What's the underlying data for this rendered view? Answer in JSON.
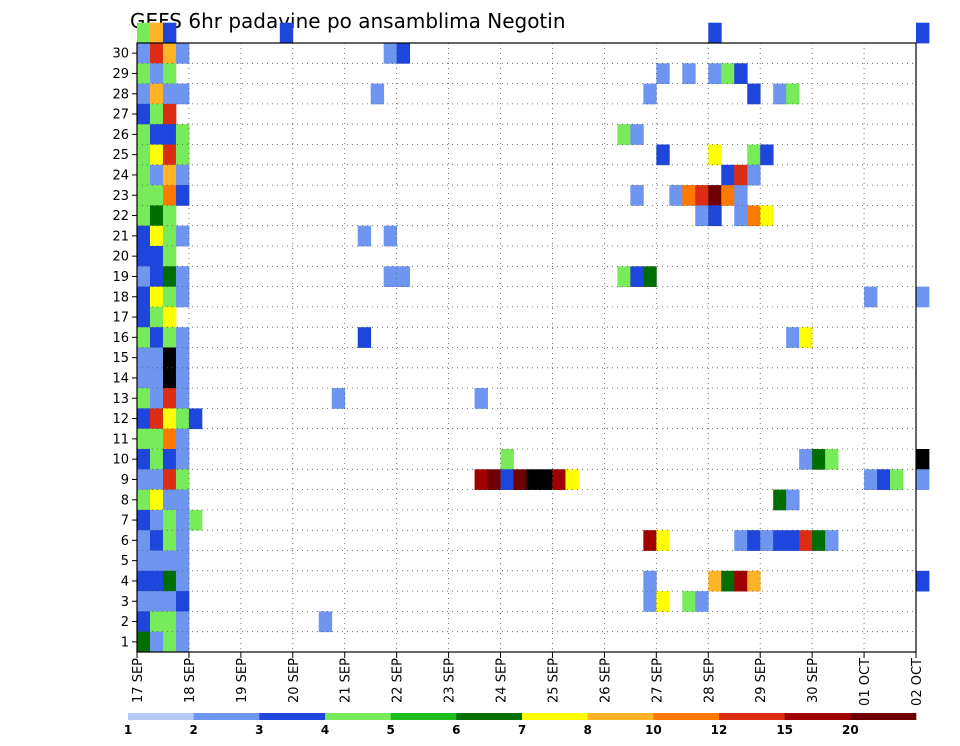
{
  "chart_data": {
    "type": "heatmap",
    "title": "GEFS 6hr padavine po ansamblima Negotin",
    "xlabel": "",
    "ylabel": "",
    "x_tick_labels": [
      "17 SEP",
      "18 SEP",
      "19 SEP",
      "20 SEP",
      "21 SEP",
      "22 SEP",
      "23 SEP",
      "24 SEP",
      "25 SEP",
      "26 SEP",
      "27 SEP",
      "28 SEP",
      "29 SEP",
      "30 SEP",
      "01 OCT",
      "02 OCT"
    ],
    "y_tick_labels": [
      "1",
      "2",
      "3",
      "4",
      "5",
      "6",
      "7",
      "8",
      "9",
      "10",
      "11",
      "12",
      "13",
      "14",
      "15",
      "16",
      "17",
      "18",
      "19",
      "20",
      "21",
      "22",
      "23",
      "24",
      "25",
      "26",
      "27",
      "28",
      "29",
      "30"
    ],
    "time_steps_per_day": 4,
    "grid": "dotted",
    "colorbar": {
      "position": "bottom",
      "labels": [
        "1",
        "2",
        "3",
        "4",
        "5",
        "6",
        "7",
        "8",
        "10",
        "12",
        "15",
        "20"
      ],
      "colors": [
        "#b4c8f5",
        "#6e96f0",
        "#1e46dc",
        "#78eb5a",
        "#1ebe1e",
        "#006e00",
        "#ffff00",
        "#ffb428",
        "#ff7800",
        "#dc2d14",
        "#a00000",
        "#6e0000"
      ]
    },
    "cells": [
      [
        30,
        0,
        3
      ],
      [
        30,
        1,
        7
      ],
      [
        30,
        2,
        2
      ],
      [
        30,
        11,
        2
      ],
      [
        30,
        44,
        2
      ],
      [
        30,
        60,
        2
      ],
      [
        29,
        0,
        1
      ],
      [
        29,
        1,
        9
      ],
      [
        29,
        2,
        7
      ],
      [
        29,
        3,
        1
      ],
      [
        29,
        19,
        1
      ],
      [
        29,
        20,
        2
      ],
      [
        28,
        0,
        3
      ],
      [
        28,
        1,
        1
      ],
      [
        28,
        2,
        3
      ],
      [
        28,
        40,
        1
      ],
      [
        28,
        42,
        1
      ],
      [
        28,
        44,
        1
      ],
      [
        28,
        45,
        3
      ],
      [
        28,
        46,
        2
      ],
      [
        27,
        0,
        1
      ],
      [
        27,
        1,
        7
      ],
      [
        27,
        2,
        1
      ],
      [
        27,
        3,
        1
      ],
      [
        27,
        18,
        1
      ],
      [
        27,
        39,
        1
      ],
      [
        27,
        47,
        2
      ],
      [
        27,
        49,
        1
      ],
      [
        27,
        50,
        3
      ],
      [
        26,
        0,
        2
      ],
      [
        26,
        1,
        3
      ],
      [
        26,
        2,
        9
      ],
      [
        25,
        0,
        3
      ],
      [
        25,
        1,
        2
      ],
      [
        25,
        2,
        2
      ],
      [
        25,
        3,
        3
      ],
      [
        25,
        37,
        3
      ],
      [
        25,
        38,
        1
      ],
      [
        24,
        0,
        3
      ],
      [
        24,
        1,
        6
      ],
      [
        24,
        2,
        9
      ],
      [
        24,
        3,
        3
      ],
      [
        24,
        40,
        2
      ],
      [
        24,
        44,
        6
      ],
      [
        24,
        47,
        3
      ],
      [
        24,
        48,
        2
      ],
      [
        23,
        0,
        3
      ],
      [
        23,
        1,
        1
      ],
      [
        23,
        2,
        7
      ],
      [
        23,
        3,
        1
      ],
      [
        23,
        45,
        2
      ],
      [
        23,
        46,
        9
      ],
      [
        23,
        47,
        1
      ],
      [
        22,
        0,
        3
      ],
      [
        22,
        1,
        3
      ],
      [
        22,
        2,
        8
      ],
      [
        22,
        3,
        2
      ],
      [
        22,
        38,
        1
      ],
      [
        22,
        41,
        1
      ],
      [
        22,
        42,
        8
      ],
      [
        22,
        43,
        9
      ],
      [
        22,
        44,
        11
      ],
      [
        22,
        45,
        8
      ],
      [
        22,
        46,
        1
      ],
      [
        21,
        0,
        3
      ],
      [
        21,
        1,
        5
      ],
      [
        21,
        2,
        3
      ],
      [
        21,
        43,
        1
      ],
      [
        21,
        44,
        2
      ],
      [
        21,
        46,
        1
      ],
      [
        21,
        47,
        8
      ],
      [
        21,
        48,
        6
      ],
      [
        20,
        0,
        2
      ],
      [
        20,
        1,
        6
      ],
      [
        20,
        2,
        3
      ],
      [
        20,
        3,
        1
      ],
      [
        20,
        17,
        1
      ],
      [
        20,
        19,
        1
      ],
      [
        19,
        0,
        2
      ],
      [
        19,
        1,
        2
      ],
      [
        19,
        2,
        3
      ],
      [
        18,
        0,
        1
      ],
      [
        18,
        1,
        2
      ],
      [
        18,
        2,
        5
      ],
      [
        18,
        3,
        1
      ],
      [
        18,
        19,
        1
      ],
      [
        18,
        20,
        1
      ],
      [
        18,
        37,
        3
      ],
      [
        18,
        38,
        2
      ],
      [
        18,
        39,
        5
      ],
      [
        17,
        0,
        2
      ],
      [
        17,
        1,
        6
      ],
      [
        17,
        2,
        3
      ],
      [
        17,
        3,
        1
      ],
      [
        17,
        56,
        1
      ],
      [
        17,
        60,
        1
      ],
      [
        16,
        0,
        2
      ],
      [
        16,
        1,
        3
      ],
      [
        16,
        2,
        6
      ],
      [
        15,
        0,
        3
      ],
      [
        15,
        1,
        2
      ],
      [
        15,
        2,
        3
      ],
      [
        15,
        3,
        1
      ],
      [
        15,
        17,
        2
      ],
      [
        15,
        50,
        1
      ],
      [
        15,
        51,
        6
      ],
      [
        14,
        0,
        1
      ],
      [
        14,
        1,
        1
      ],
      [
        14,
        2,
        12
      ],
      [
        14,
        3,
        1
      ],
      [
        13,
        0,
        1
      ],
      [
        13,
        1,
        1
      ],
      [
        13,
        2,
        12
      ],
      [
        13,
        3,
        1
      ],
      [
        12,
        0,
        3
      ],
      [
        12,
        1,
        1
      ],
      [
        12,
        2,
        9
      ],
      [
        12,
        3,
        1
      ],
      [
        12,
        15,
        1
      ],
      [
        12,
        26,
        1
      ],
      [
        11,
        0,
        2
      ],
      [
        11,
        1,
        9
      ],
      [
        11,
        2,
        6
      ],
      [
        11,
        3,
        3
      ],
      [
        11,
        4,
        2
      ],
      [
        10,
        0,
        3
      ],
      [
        10,
        1,
        3
      ],
      [
        10,
        2,
        8
      ],
      [
        10,
        3,
        1
      ],
      [
        9,
        0,
        2
      ],
      [
        9,
        1,
        3
      ],
      [
        9,
        2,
        2
      ],
      [
        9,
        3,
        1
      ],
      [
        9,
        28,
        3
      ],
      [
        9,
        51,
        1
      ],
      [
        9,
        52,
        5
      ],
      [
        9,
        53,
        3
      ],
      [
        9,
        60,
        12
      ],
      [
        8,
        0,
        1
      ],
      [
        8,
        1,
        1
      ],
      [
        8,
        2,
        9
      ],
      [
        8,
        3,
        3
      ],
      [
        8,
        26,
        10
      ],
      [
        8,
        27,
        11
      ],
      [
        8,
        28,
        2
      ],
      [
        8,
        29,
        11
      ],
      [
        8,
        30,
        12
      ],
      [
        8,
        31,
        12
      ],
      [
        8,
        32,
        10
      ],
      [
        8,
        33,
        6
      ],
      [
        8,
        56,
        1
      ],
      [
        8,
        57,
        2
      ],
      [
        8,
        58,
        3
      ],
      [
        8,
        60,
        1
      ],
      [
        7,
        0,
        3
      ],
      [
        7,
        1,
        6
      ],
      [
        7,
        2,
        1
      ],
      [
        7,
        3,
        1
      ],
      [
        7,
        49,
        5
      ],
      [
        7,
        50,
        1
      ],
      [
        6,
        0,
        2
      ],
      [
        6,
        1,
        1
      ],
      [
        6,
        2,
        3
      ],
      [
        6,
        3,
        1
      ],
      [
        6,
        4,
        3
      ],
      [
        5,
        0,
        1
      ],
      [
        5,
        1,
        2
      ],
      [
        5,
        2,
        3
      ],
      [
        5,
        3,
        1
      ],
      [
        5,
        39,
        10
      ],
      [
        5,
        40,
        6
      ],
      [
        5,
        46,
        1
      ],
      [
        5,
        47,
        2
      ],
      [
        5,
        48,
        1
      ],
      [
        5,
        49,
        2
      ],
      [
        5,
        50,
        2
      ],
      [
        5,
        51,
        9
      ],
      [
        5,
        52,
        5
      ],
      [
        5,
        53,
        1
      ],
      [
        4,
        0,
        1
      ],
      [
        4,
        1,
        1
      ],
      [
        4,
        2,
        1
      ],
      [
        4,
        3,
        1
      ],
      [
        3,
        0,
        2
      ],
      [
        3,
        1,
        2
      ],
      [
        3,
        2,
        5
      ],
      [
        3,
        3,
        1
      ],
      [
        3,
        39,
        1
      ],
      [
        3,
        44,
        7
      ],
      [
        3,
        45,
        5
      ],
      [
        3,
        46,
        10
      ],
      [
        3,
        47,
        7
      ],
      [
        3,
        60,
        2
      ],
      [
        2,
        0,
        1
      ],
      [
        2,
        1,
        1
      ],
      [
        2,
        2,
        1
      ],
      [
        2,
        3,
        2
      ],
      [
        2,
        39,
        1
      ],
      [
        2,
        40,
        6
      ],
      [
        2,
        42,
        3
      ],
      [
        2,
        43,
        1
      ],
      [
        1,
        0,
        2
      ],
      [
        1,
        1,
        3
      ],
      [
        1,
        2,
        3
      ],
      [
        1,
        3,
        1
      ],
      [
        1,
        14,
        1
      ],
      [
        0,
        0,
        5
      ],
      [
        0,
        1,
        1
      ],
      [
        0,
        2,
        3
      ],
      [
        0,
        3,
        1
      ]
    ]
  }
}
